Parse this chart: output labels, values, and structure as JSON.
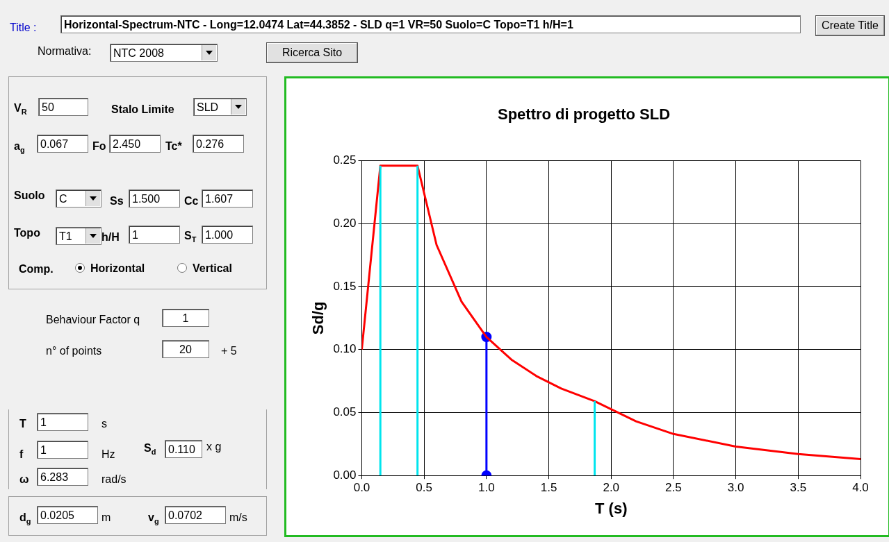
{
  "chart_data": {
    "type": "line",
    "title": "Spettro di progetto SLD",
    "xlabel": "T (s)",
    "ylabel": "Sd/g",
    "xlim": [
      0,
      4
    ],
    "ylim": [
      0,
      0.25
    ],
    "xticks": [
      {
        "value": 0,
        "label": "0.0"
      },
      {
        "value": 0.5,
        "label": "0.5"
      },
      {
        "value": 1,
        "label": "1.0"
      },
      {
        "value": 1.5,
        "label": "1.5"
      },
      {
        "value": 2,
        "label": "2.0"
      },
      {
        "value": 2.5,
        "label": "2.5"
      },
      {
        "value": 3,
        "label": "3.0"
      },
      {
        "value": 3.5,
        "label": "3.5"
      },
      {
        "value": 4,
        "label": "4.0"
      }
    ],
    "yticks": [
      {
        "value": 0,
        "label": "0.00"
      },
      {
        "value": 0.05,
        "label": "0.05"
      },
      {
        "value": 0.1,
        "label": "0.10"
      },
      {
        "value": 0.15,
        "label": "0.15"
      },
      {
        "value": 0.2,
        "label": "0.20"
      },
      {
        "value": 0.25,
        "label": "0.25"
      }
    ],
    "grid": true,
    "series": [
      {
        "type": "line",
        "color": "#00e5ee",
        "marker": "none",
        "x": [
          0.149,
          0.149
        ],
        "values": [
          0,
          0.246
        ]
      },
      {
        "type": "line",
        "color": "#00e5ee",
        "marker": "none",
        "x": [
          0.447,
          0.447
        ],
        "values": [
          0,
          0.246
        ]
      },
      {
        "type": "line",
        "color": "#00e5ee",
        "marker": "none",
        "x": [
          1.868,
          1.868
        ],
        "values": [
          0,
          0.059
        ]
      },
      {
        "type": "line",
        "color": "#ff0000",
        "marker": "none",
        "x": [
          0,
          0.149,
          0.447,
          0.6,
          0.8,
          1.0,
          1.2,
          1.4,
          1.6,
          1.868,
          2.2,
          2.5,
          3.0,
          3.5,
          4.0
        ],
        "values": [
          0.1,
          0.246,
          0.246,
          0.183,
          0.138,
          0.11,
          0.092,
          0.079,
          0.069,
          0.059,
          0.043,
          0.033,
          0.023,
          0.017,
          0.013
        ]
      },
      {
        "type": "line",
        "color": "#0000ff",
        "marker": "circle",
        "x": [
          1,
          1
        ],
        "values": [
          0,
          0.11
        ]
      }
    ],
    "annotations": [
      "Title :",
      "Horizontal-Spectrum-NTC - Long=12.0474 Lat=44.3852 - SLD q=1 VR=50 Suolo=C Topo=T1 h/H=1",
      "Create Title",
      "Normativa:",
      "NTC 2008",
      "Ricerca Sito",
      "V$_{R}$",
      "50",
      "Stalo Limite",
      "SLD",
      "a$_{g}$",
      "0.067",
      "Fo",
      "2.450",
      "Tc*",
      "0.276",
      "Suolo",
      "C",
      "Ss",
      "1.500",
      "Cc",
      "1.607",
      "Topo",
      "T1",
      "h/H",
      "1",
      "S$_{T}$",
      "1.000",
      "Comp.",
      "Horizontal",
      "Vertical",
      "Behaviour Factor q",
      "1",
      "n° of points",
      "20",
      "+ 5",
      "T",
      "1",
      "s",
      "f",
      "1",
      "Hz",
      "S$_{d}$",
      "0.110",
      "x g",
      "ω",
      "6.283",
      "rad/s",
      "d$_{g}$",
      "0.0205",
      "m",
      "v$_{g}$",
      "0.0702",
      "m/s"
    ]
  }
}
